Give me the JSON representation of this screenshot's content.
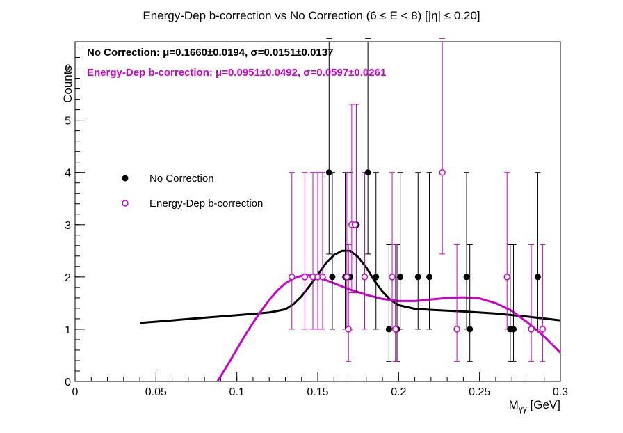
{
  "chart_data": {
    "type": "scatter",
    "title": "Energy-Dep b-correction vs No Correction   (6 ≤ E < 8)   [|η| ≤ 0.20]",
    "xlabel": "M",
    "xlabel_sub": "γγ",
    "xlabel_unit": " [GeV]",
    "ylabel": "Counts",
    "xlim": [
      0,
      0.3
    ],
    "ylim": [
      0,
      6.5
    ],
    "x_ticks": [
      {
        "v": 0,
        "label": "0"
      },
      {
        "v": 0.05,
        "label": "0.05"
      },
      {
        "v": 0.1,
        "label": "0.1"
      },
      {
        "v": 0.15,
        "label": "0.15"
      },
      {
        "v": 0.2,
        "label": "0.2"
      },
      {
        "v": 0.25,
        "label": "0.25"
      },
      {
        "v": 0.3,
        "label": "0.3"
      }
    ],
    "y_ticks": [
      {
        "v": 0,
        "label": "0"
      },
      {
        "v": 1,
        "label": "1"
      },
      {
        "v": 2,
        "label": "2"
      },
      {
        "v": 3,
        "label": "3"
      },
      {
        "v": 4,
        "label": "4"
      },
      {
        "v": 5,
        "label": "5"
      },
      {
        "v": 6,
        "label": "6"
      }
    ],
    "grid": false,
    "legend_position": "middle-left",
    "stats": [
      {
        "text": "No Correction:  μ=0.1660±0.0194,  σ=0.0151±0.0137",
        "color": "#000000"
      },
      {
        "text": "Energy-Dep b-correction:  μ=0.0951±0.0492,  σ=0.0597±0.0261",
        "color": "#cc00cc"
      }
    ],
    "series": [
      {
        "name": "No Correction",
        "color": "#000000",
        "marker": "filled-circle",
        "points": [
          {
            "x": 0.157,
            "y": 4
          },
          {
            "x": 0.159,
            "y": 2
          },
          {
            "x": 0.167,
            "y": 2
          },
          {
            "x": 0.17,
            "y": 2
          },
          {
            "x": 0.174,
            "y": 3
          },
          {
            "x": 0.181,
            "y": 4
          },
          {
            "x": 0.186,
            "y": 2
          },
          {
            "x": 0.194,
            "y": 1
          },
          {
            "x": 0.199,
            "y": 1
          },
          {
            "x": 0.201,
            "y": 2
          },
          {
            "x": 0.212,
            "y": 2
          },
          {
            "x": 0.219,
            "y": 2
          },
          {
            "x": 0.242,
            "y": 2
          },
          {
            "x": 0.244,
            "y": 1
          },
          {
            "x": 0.269,
            "y": 1
          },
          {
            "x": 0.271,
            "y": 1
          },
          {
            "x": 0.286,
            "y": 2
          }
        ],
        "fit": [
          {
            "x": 0.04,
            "y": 1.12
          },
          {
            "x": 0.06,
            "y": 1.17
          },
          {
            "x": 0.08,
            "y": 1.22
          },
          {
            "x": 0.1,
            "y": 1.27
          },
          {
            "x": 0.12,
            "y": 1.32
          },
          {
            "x": 0.13,
            "y": 1.38
          },
          {
            "x": 0.135,
            "y": 1.48
          },
          {
            "x": 0.14,
            "y": 1.63
          },
          {
            "x": 0.145,
            "y": 1.83
          },
          {
            "x": 0.15,
            "y": 2.04
          },
          {
            "x": 0.155,
            "y": 2.26
          },
          {
            "x": 0.16,
            "y": 2.42
          },
          {
            "x": 0.165,
            "y": 2.5
          },
          {
            "x": 0.17,
            "y": 2.5
          },
          {
            "x": 0.175,
            "y": 2.38
          },
          {
            "x": 0.18,
            "y": 2.18
          },
          {
            "x": 0.185,
            "y": 1.93
          },
          {
            "x": 0.19,
            "y": 1.72
          },
          {
            "x": 0.195,
            "y": 1.56
          },
          {
            "x": 0.2,
            "y": 1.46
          },
          {
            "x": 0.21,
            "y": 1.39
          },
          {
            "x": 0.22,
            "y": 1.37
          },
          {
            "x": 0.24,
            "y": 1.34
          },
          {
            "x": 0.26,
            "y": 1.3
          },
          {
            "x": 0.28,
            "y": 1.24
          },
          {
            "x": 0.3,
            "y": 1.17
          }
        ]
      },
      {
        "name": "Energy-Dep b-correction",
        "color": "#cc00cc",
        "marker": "open-circle",
        "points": [
          {
            "x": 0.134,
            "y": 2
          },
          {
            "x": 0.142,
            "y": 2
          },
          {
            "x": 0.147,
            "y": 2
          },
          {
            "x": 0.15,
            "y": 2
          },
          {
            "x": 0.153,
            "y": 2
          },
          {
            "x": 0.168,
            "y": 2
          },
          {
            "x": 0.169,
            "y": 1
          },
          {
            "x": 0.171,
            "y": 3
          },
          {
            "x": 0.173,
            "y": 3
          },
          {
            "x": 0.179,
            "y": 2
          },
          {
            "x": 0.196,
            "y": 2
          },
          {
            "x": 0.198,
            "y": 1
          },
          {
            "x": 0.227,
            "y": 4
          },
          {
            "x": 0.236,
            "y": 1
          },
          {
            "x": 0.267,
            "y": 2
          },
          {
            "x": 0.282,
            "y": 1
          },
          {
            "x": 0.289,
            "y": 1
          }
        ],
        "fit": [
          {
            "x": 0.088,
            "y": 0.0
          },
          {
            "x": 0.095,
            "y": 0.35
          },
          {
            "x": 0.1,
            "y": 0.62
          },
          {
            "x": 0.105,
            "y": 0.88
          },
          {
            "x": 0.11,
            "y": 1.12
          },
          {
            "x": 0.115,
            "y": 1.35
          },
          {
            "x": 0.12,
            "y": 1.56
          },
          {
            "x": 0.125,
            "y": 1.74
          },
          {
            "x": 0.13,
            "y": 1.88
          },
          {
            "x": 0.135,
            "y": 1.97
          },
          {
            "x": 0.14,
            "y": 2.02
          },
          {
            "x": 0.145,
            "y": 2.03
          },
          {
            "x": 0.15,
            "y": 2.0
          },
          {
            "x": 0.16,
            "y": 1.88
          },
          {
            "x": 0.17,
            "y": 1.76
          },
          {
            "x": 0.18,
            "y": 1.66
          },
          {
            "x": 0.19,
            "y": 1.58
          },
          {
            "x": 0.2,
            "y": 1.54
          },
          {
            "x": 0.21,
            "y": 1.54
          },
          {
            "x": 0.22,
            "y": 1.57
          },
          {
            "x": 0.23,
            "y": 1.6
          },
          {
            "x": 0.24,
            "y": 1.61
          },
          {
            "x": 0.25,
            "y": 1.59
          },
          {
            "x": 0.26,
            "y": 1.5
          },
          {
            "x": 0.27,
            "y": 1.35
          },
          {
            "x": 0.28,
            "y": 1.12
          },
          {
            "x": 0.29,
            "y": 0.86
          },
          {
            "x": 0.3,
            "y": 0.55
          }
        ]
      }
    ]
  }
}
